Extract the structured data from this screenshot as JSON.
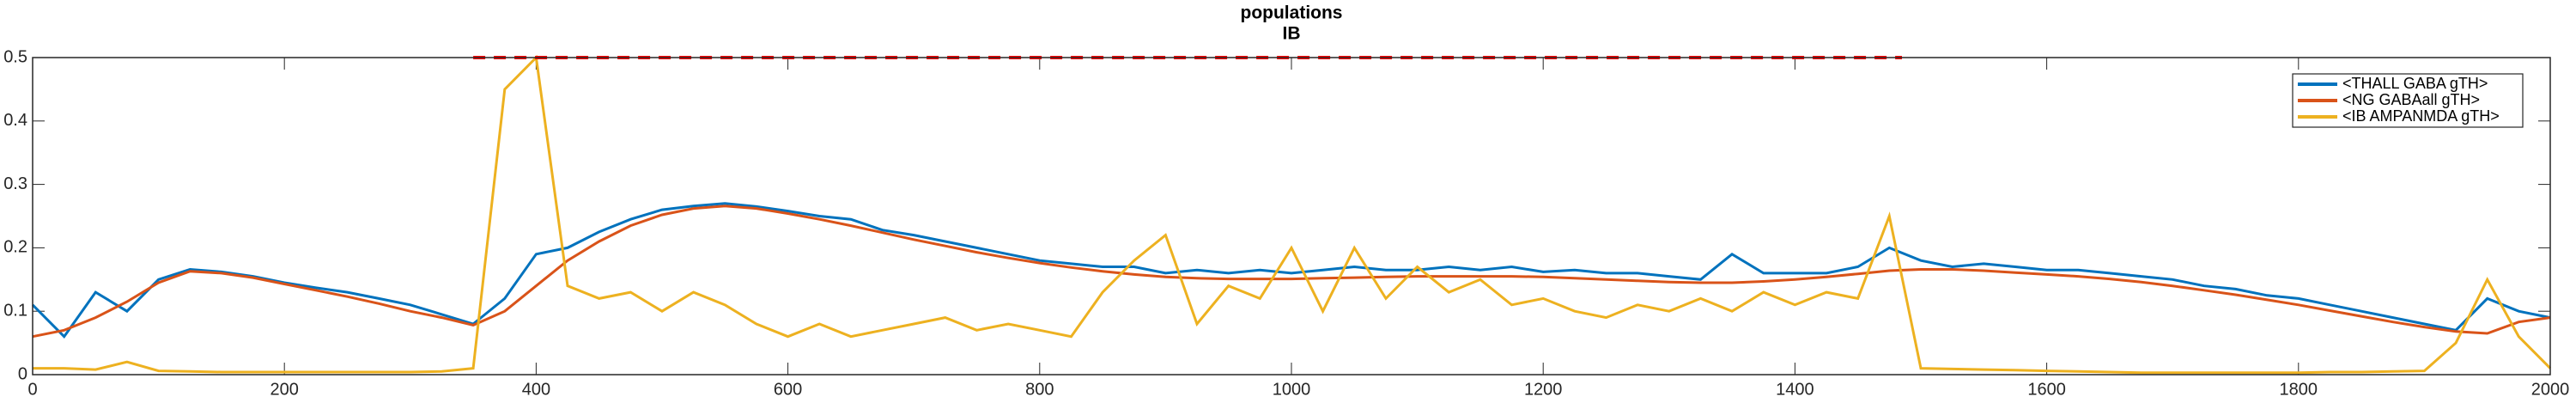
{
  "chart_data": {
    "type": "line",
    "title": "populations",
    "subtitle": "IB",
    "x": [
      0,
      25,
      50,
      75,
      100,
      125,
      150,
      175,
      200,
      225,
      250,
      275,
      300,
      325,
      350,
      375,
      400,
      425,
      450,
      475,
      500,
      525,
      550,
      575,
      600,
      625,
      650,
      675,
      700,
      725,
      750,
      775,
      800,
      825,
      850,
      875,
      900,
      925,
      950,
      975,
      1000,
      1025,
      1050,
      1075,
      1100,
      1125,
      1150,
      1175,
      1200,
      1225,
      1250,
      1275,
      1300,
      1325,
      1350,
      1375,
      1400,
      1425,
      1450,
      1475,
      1500,
      1525,
      1550,
      1575,
      1600,
      1625,
      1650,
      1675,
      1700,
      1725,
      1750,
      1775,
      1800,
      1825,
      1850,
      1875,
      1900,
      1925,
      1950,
      1975,
      2000
    ],
    "series": [
      {
        "name": "<THALL GABA gTH>",
        "color": "#0072BD",
        "values": [
          0.11,
          0.06,
          0.13,
          0.1,
          0.15,
          0.166,
          0.162,
          0.155,
          0.145,
          0.137,
          0.13,
          0.12,
          0.11,
          0.095,
          0.08,
          0.12,
          0.19,
          0.2,
          0.225,
          0.245,
          0.26,
          0.266,
          0.27,
          0.265,
          0.258,
          0.25,
          0.245,
          0.228,
          0.22,
          0.21,
          0.2,
          0.19,
          0.18,
          0.175,
          0.17,
          0.17,
          0.16,
          0.165,
          0.16,
          0.165,
          0.16,
          0.165,
          0.17,
          0.165,
          0.165,
          0.17,
          0.165,
          0.17,
          0.162,
          0.165,
          0.16,
          0.16,
          0.155,
          0.15,
          0.19,
          0.16,
          0.16,
          0.16,
          0.17,
          0.2,
          0.18,
          0.17,
          0.175,
          0.17,
          0.165,
          0.165,
          0.16,
          0.155,
          0.15,
          0.14,
          0.135,
          0.125,
          0.12,
          0.11,
          0.1,
          0.09,
          0.08,
          0.07,
          0.12,
          0.1,
          0.09
        ]
      },
      {
        "name": "<NG GABAall gTH>",
        "color": "#D95319",
        "values": [
          0.06,
          0.07,
          0.09,
          0.115,
          0.145,
          0.163,
          0.16,
          0.153,
          0.143,
          0.133,
          0.123,
          0.112,
          0.1,
          0.09,
          0.078,
          0.1,
          0.14,
          0.18,
          0.21,
          0.235,
          0.252,
          0.262,
          0.266,
          0.262,
          0.254,
          0.245,
          0.235,
          0.224,
          0.213,
          0.203,
          0.193,
          0.184,
          0.176,
          0.169,
          0.163,
          0.158,
          0.154,
          0.152,
          0.151,
          0.151,
          0.151,
          0.152,
          0.153,
          0.154,
          0.155,
          0.155,
          0.155,
          0.155,
          0.154,
          0.152,
          0.15,
          0.148,
          0.146,
          0.145,
          0.145,
          0.147,
          0.15,
          0.154,
          0.159,
          0.164,
          0.166,
          0.166,
          0.164,
          0.161,
          0.158,
          0.155,
          0.151,
          0.146,
          0.14,
          0.133,
          0.126,
          0.118,
          0.11,
          0.101,
          0.092,
          0.083,
          0.075,
          0.068,
          0.065,
          0.083,
          0.09
        ]
      },
      {
        "name": "<IB AMPANMDA gTH>",
        "color": "#EDB120",
        "values": [
          0.01,
          0.01,
          0.008,
          0.02,
          0.006,
          0.005,
          0.004,
          0.004,
          0.004,
          0.004,
          0.004,
          0.004,
          0.004,
          0.005,
          0.01,
          0.45,
          0.5,
          0.14,
          0.12,
          0.13,
          0.1,
          0.13,
          0.11,
          0.08,
          0.06,
          0.08,
          0.06,
          0.07,
          0.08,
          0.09,
          0.07,
          0.08,
          0.07,
          0.06,
          0.13,
          0.18,
          0.22,
          0.08,
          0.14,
          0.12,
          0.2,
          0.1,
          0.2,
          0.12,
          0.17,
          0.13,
          0.15,
          0.11,
          0.12,
          0.1,
          0.09,
          0.11,
          0.1,
          0.12,
          0.1,
          0.13,
          0.11,
          0.13,
          0.12,
          0.25,
          0.01,
          0.009,
          0.008,
          0.007,
          0.006,
          0.005,
          0.004,
          0.003,
          0.003,
          0.003,
          0.003,
          0.003,
          0.003,
          0.004,
          0.004,
          0.005,
          0.006,
          0.05,
          0.15,
          0.06,
          0.01
        ]
      }
    ],
    "reference_line": {
      "y": 0.5,
      "x": [
        350,
        1485
      ],
      "color": "#FF0000"
    },
    "xlim": [
      0,
      2000
    ],
    "xticks": [
      0,
      200,
      400,
      600,
      800,
      1000,
      1200,
      1400,
      1600,
      1800,
      2000
    ],
    "ylim": [
      0,
      0.5
    ],
    "yticks": [
      0,
      0.1,
      0.2,
      0.3,
      0.4,
      0.5
    ],
    "grid": false,
    "legend": "top-right"
  }
}
